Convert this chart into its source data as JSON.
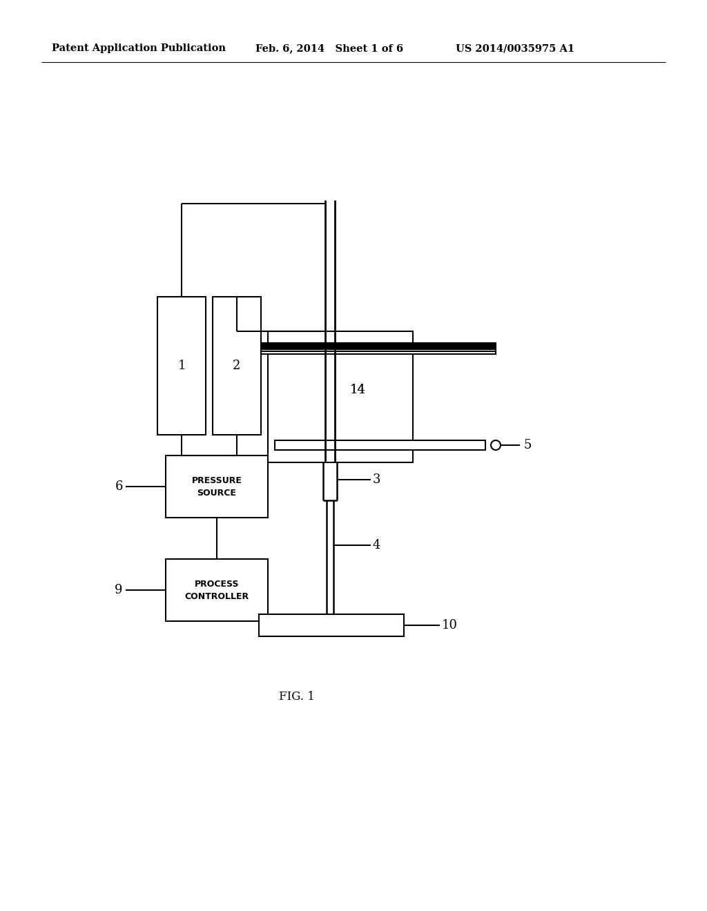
{
  "bg_color": "#ffffff",
  "line_color": "#000000",
  "header_left": "Patent Application Publication",
  "header_mid": "Feb. 6, 2014   Sheet 1 of 6",
  "header_right": "US 2014/0035975 A1",
  "fig_label": "FIG. 1"
}
